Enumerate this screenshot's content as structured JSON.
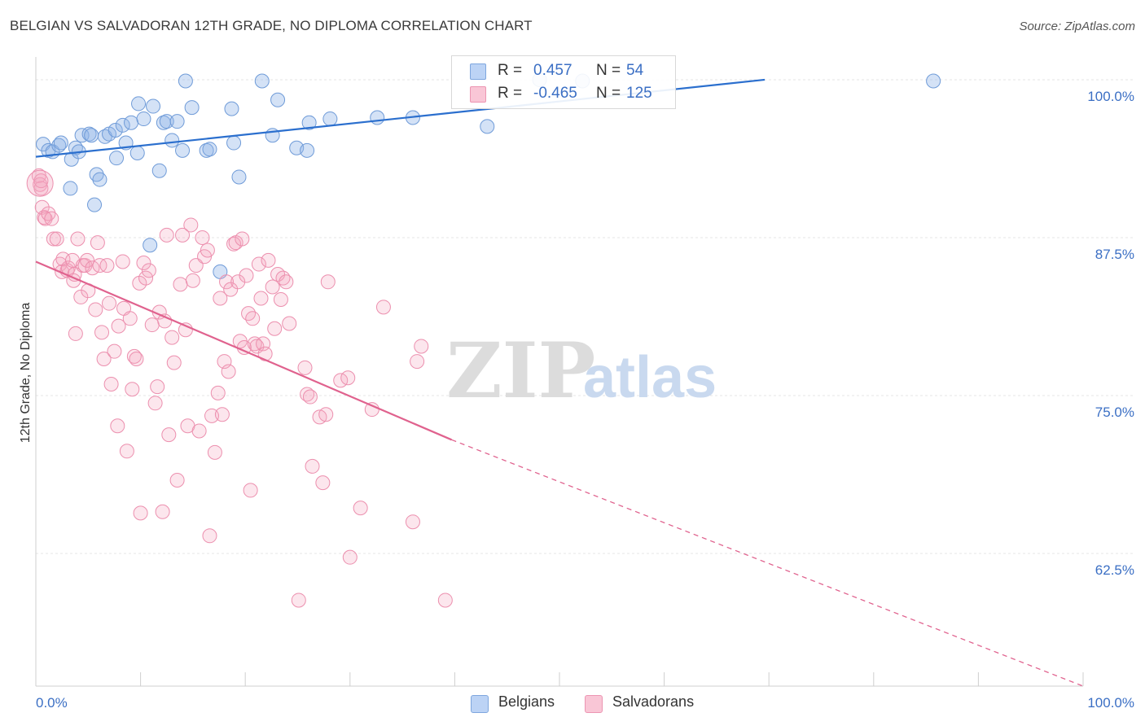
{
  "chart_data": {
    "type": "scatter",
    "title": "BELGIAN VS SALVADORAN 12TH GRADE, NO DIPLOMA CORRELATION CHART",
    "source": "Source: ZipAtlas.com",
    "ylabel": "12th Grade, No Diploma",
    "xlabel": "",
    "xlim": [
      0,
      100
    ],
    "ylim": [
      52.0,
      101.8
    ],
    "x_tick_labels": [
      "0.0%",
      "100.0%"
    ],
    "y_ticks": [
      {
        "value": 100.0,
        "label": "100.0%"
      },
      {
        "value": 87.5,
        "label": "87.5%"
      },
      {
        "value": 75.0,
        "label": "75.0%"
      },
      {
        "value": 62.5,
        "label": "62.5%"
      }
    ],
    "grid": true,
    "legend_position": "top-center",
    "watermark": "ZIPatlas",
    "series": [
      {
        "name": "Belgians",
        "color": "#8fb3e8",
        "line_color": "#2b6fce",
        "R": "0.457",
        "N": "54",
        "trend": {
          "x": [
            0.0,
            69.6
          ],
          "y": [
            93.9,
            100.0
          ]
        },
        "points": [
          [
            0.7,
            94.9
          ],
          [
            1.2,
            94.4
          ],
          [
            1.6,
            94.3
          ],
          [
            2.2,
            94.8
          ],
          [
            2.4,
            95.0
          ],
          [
            3.3,
            91.4
          ],
          [
            3.4,
            93.7
          ],
          [
            3.8,
            94.6
          ],
          [
            4.1,
            94.3
          ],
          [
            4.4,
            95.6
          ],
          [
            5.1,
            95.7
          ],
          [
            5.3,
            95.6
          ],
          [
            5.6,
            90.1
          ],
          [
            5.8,
            92.5
          ],
          [
            6.1,
            92.1
          ],
          [
            6.6,
            95.5
          ],
          [
            7.0,
            95.7
          ],
          [
            7.6,
            96.0
          ],
          [
            7.7,
            93.8
          ],
          [
            8.3,
            96.4
          ],
          [
            8.6,
            95.0
          ],
          [
            9.1,
            96.6
          ],
          [
            9.7,
            94.2
          ],
          [
            9.8,
            98.1
          ],
          [
            10.3,
            96.9
          ],
          [
            10.9,
            86.9
          ],
          [
            11.2,
            97.9
          ],
          [
            11.8,
            92.8
          ],
          [
            12.2,
            96.6
          ],
          [
            12.5,
            96.7
          ],
          [
            13.0,
            95.2
          ],
          [
            13.5,
            96.7
          ],
          [
            14.0,
            94.4
          ],
          [
            14.3,
            99.9
          ],
          [
            14.9,
            97.8
          ],
          [
            16.3,
            94.4
          ],
          [
            16.6,
            94.5
          ],
          [
            17.6,
            84.8
          ],
          [
            18.7,
            97.7
          ],
          [
            18.9,
            95.0
          ],
          [
            19.4,
            92.3
          ],
          [
            21.6,
            99.9
          ],
          [
            22.6,
            95.6
          ],
          [
            23.1,
            98.4
          ],
          [
            24.9,
            94.6
          ],
          [
            25.9,
            94.4
          ],
          [
            26.1,
            96.6
          ],
          [
            28.1,
            96.9
          ],
          [
            32.6,
            97.0
          ],
          [
            36.0,
            97.0
          ],
          [
            43.1,
            96.3
          ],
          [
            48.1,
            100.0
          ],
          [
            52.2,
            99.9
          ],
          [
            85.7,
            99.9
          ]
        ]
      },
      {
        "name": "Salvadorans",
        "color": "#f4a7bf",
        "line_color": "#e0628e",
        "R": "-0.465",
        "N": "125",
        "trend": {
          "x": [
            0.0,
            39.7
          ],
          "y": [
            85.6,
            71.5
          ]
        },
        "trend_dashed": {
          "x": [
            39.7,
            100.0
          ],
          "y": [
            71.5,
            52.0
          ]
        },
        "points": [
          [
            0.3,
            92.4
          ],
          [
            0.4,
            91.7
          ],
          [
            0.5,
            91.4
          ],
          [
            0.6,
            89.9
          ],
          [
            0.8,
            89.1
          ],
          [
            0.9,
            89.0
          ],
          [
            1.2,
            89.4
          ],
          [
            1.5,
            89.0
          ],
          [
            1.7,
            87.4
          ],
          [
            2.0,
            87.4
          ],
          [
            2.3,
            85.4
          ],
          [
            2.5,
            84.8
          ],
          [
            2.6,
            85.8
          ],
          [
            3.0,
            84.9
          ],
          [
            3.1,
            85.1
          ],
          [
            3.5,
            85.7
          ],
          [
            3.6,
            84.1
          ],
          [
            3.7,
            84.6
          ],
          [
            3.8,
            79.9
          ],
          [
            4.0,
            87.4
          ],
          [
            4.3,
            82.8
          ],
          [
            4.5,
            85.3
          ],
          [
            4.7,
            85.3
          ],
          [
            4.9,
            85.7
          ],
          [
            5.0,
            83.3
          ],
          [
            5.4,
            85.1
          ],
          [
            5.7,
            81.8
          ],
          [
            5.9,
            87.1
          ],
          [
            6.1,
            85.3
          ],
          [
            6.3,
            80.0
          ],
          [
            6.5,
            77.9
          ],
          [
            6.8,
            85.3
          ],
          [
            7.0,
            82.3
          ],
          [
            7.2,
            75.9
          ],
          [
            7.5,
            78.5
          ],
          [
            7.8,
            72.6
          ],
          [
            7.9,
            80.5
          ],
          [
            8.3,
            85.6
          ],
          [
            8.4,
            81.9
          ],
          [
            8.7,
            70.6
          ],
          [
            9.0,
            81.1
          ],
          [
            9.2,
            75.5
          ],
          [
            9.4,
            78.1
          ],
          [
            9.6,
            77.9
          ],
          [
            9.9,
            83.9
          ],
          [
            10.0,
            65.7
          ],
          [
            10.3,
            85.5
          ],
          [
            10.5,
            84.3
          ],
          [
            10.8,
            84.9
          ],
          [
            11.1,
            80.6
          ],
          [
            11.4,
            74.4
          ],
          [
            11.6,
            75.7
          ],
          [
            11.8,
            81.6
          ],
          [
            12.1,
            65.8
          ],
          [
            12.3,
            80.9
          ],
          [
            12.5,
            87.7
          ],
          [
            12.7,
            71.9
          ],
          [
            13.0,
            79.6
          ],
          [
            13.2,
            77.6
          ],
          [
            13.5,
            68.3
          ],
          [
            13.8,
            83.8
          ],
          [
            14.0,
            87.7
          ],
          [
            14.3,
            80.2
          ],
          [
            14.5,
            72.6
          ],
          [
            14.8,
            88.5
          ],
          [
            15.0,
            84.1
          ],
          [
            15.3,
            85.3
          ],
          [
            15.6,
            72.2
          ],
          [
            15.9,
            87.5
          ],
          [
            16.1,
            86.0
          ],
          [
            16.4,
            86.5
          ],
          [
            16.6,
            63.9
          ],
          [
            16.8,
            73.4
          ],
          [
            17.1,
            70.5
          ],
          [
            17.4,
            75.2
          ],
          [
            17.6,
            82.7
          ],
          [
            17.8,
            73.5
          ],
          [
            18.0,
            77.7
          ],
          [
            18.2,
            84.0
          ],
          [
            18.4,
            76.9
          ],
          [
            18.6,
            83.4
          ],
          [
            18.9,
            87.0
          ],
          [
            19.1,
            87.1
          ],
          [
            19.3,
            84.0
          ],
          [
            19.5,
            79.3
          ],
          [
            19.7,
            87.4
          ],
          [
            19.9,
            78.8
          ],
          [
            20.1,
            84.5
          ],
          [
            20.3,
            81.5
          ],
          [
            20.5,
            67.5
          ],
          [
            20.7,
            81.1
          ],
          [
            20.9,
            79.1
          ],
          [
            21.1,
            78.9
          ],
          [
            21.3,
            85.4
          ],
          [
            21.5,
            82.7
          ],
          [
            21.7,
            79.1
          ],
          [
            21.9,
            78.3
          ],
          [
            22.2,
            85.7
          ],
          [
            22.6,
            83.6
          ],
          [
            22.8,
            80.3
          ],
          [
            23.1,
            84.6
          ],
          [
            23.4,
            82.6
          ],
          [
            23.6,
            84.3
          ],
          [
            23.9,
            84.0
          ],
          [
            24.2,
            80.7
          ],
          [
            25.1,
            58.8
          ],
          [
            25.7,
            77.2
          ],
          [
            25.9,
            75.1
          ],
          [
            26.2,
            74.9
          ],
          [
            26.4,
            69.4
          ],
          [
            27.1,
            73.3
          ],
          [
            27.4,
            68.1
          ],
          [
            27.7,
            73.5
          ],
          [
            27.9,
            84.0
          ],
          [
            29.1,
            76.2
          ],
          [
            29.8,
            76.4
          ],
          [
            30.0,
            62.2
          ],
          [
            31.0,
            66.1
          ],
          [
            32.1,
            73.9
          ],
          [
            33.2,
            82.0
          ],
          [
            36.0,
            65.0
          ],
          [
            36.4,
            77.7
          ],
          [
            36.8,
            78.9
          ],
          [
            39.1,
            58.8
          ],
          [
            0.5,
            92.0
          ]
        ]
      }
    ]
  }
}
